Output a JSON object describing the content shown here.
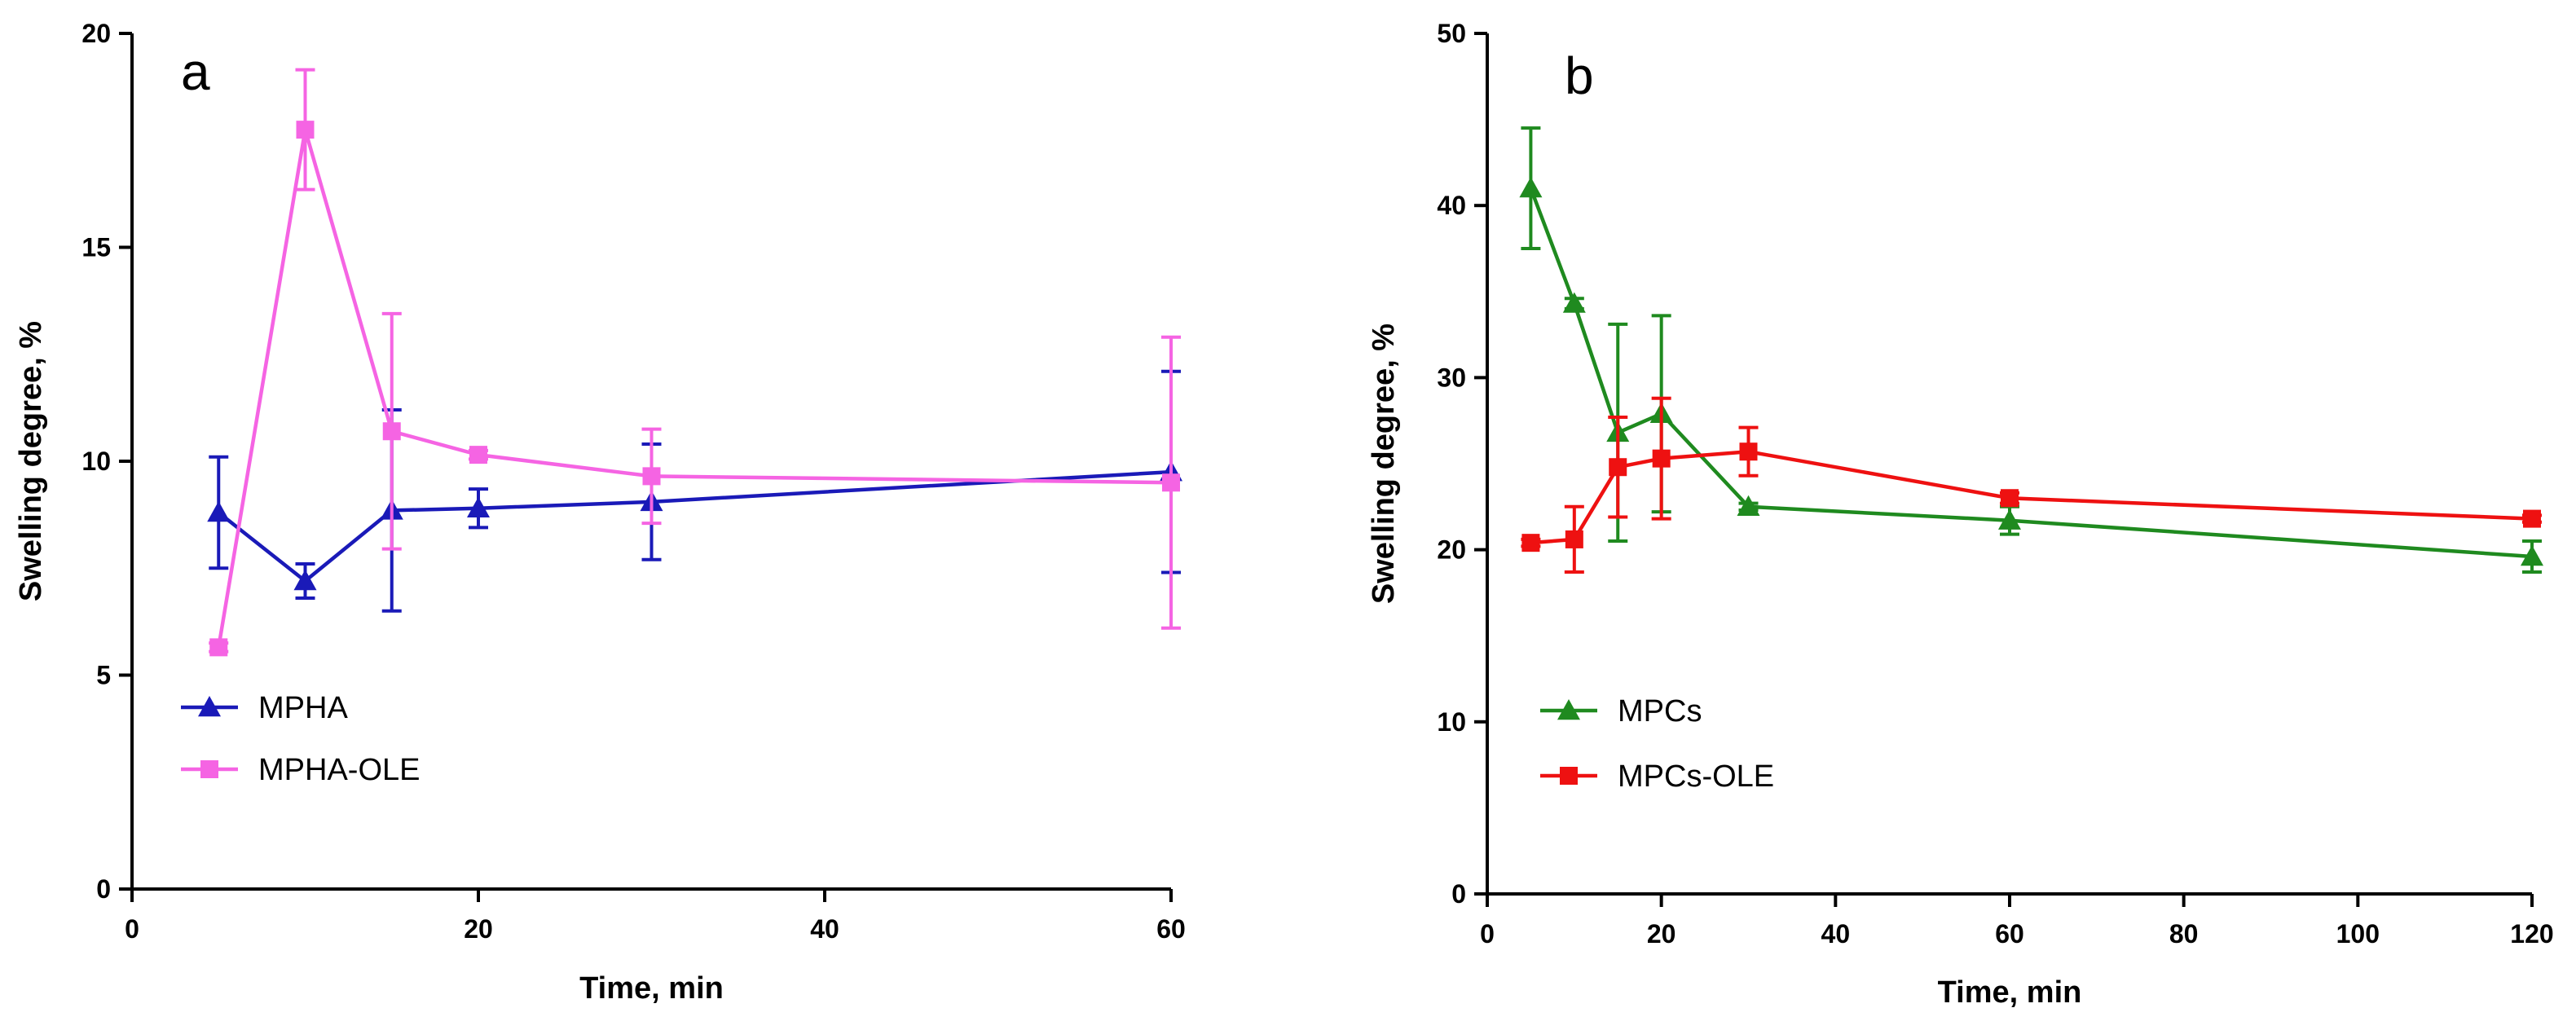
{
  "chart_data": [
    {
      "id": "a",
      "type": "line",
      "panel_label": "a",
      "xlabel": "Time, min",
      "ylabel": "Swelling degree, %",
      "xlim": [
        0,
        60
      ],
      "ylim": [
        0,
        20
      ],
      "xticks": [
        0,
        20,
        40,
        60
      ],
      "yticks": [
        0,
        5,
        10,
        15,
        20
      ],
      "legend_position": "lower-left",
      "series": [
        {
          "name": "MPHA",
          "color": "#1a1ab8",
          "marker": "triangle",
          "x": [
            5,
            10,
            15,
            20,
            30,
            60
          ],
          "y": [
            8.8,
            7.2,
            8.85,
            8.9,
            9.05,
            9.75
          ],
          "err": [
            1.3,
            0.4,
            2.35,
            0.45,
            1.35,
            2.35
          ]
        },
        {
          "name": "MPHA-OLE",
          "color": "#f564e3",
          "marker": "square",
          "x": [
            5,
            10,
            15,
            20,
            30,
            60
          ],
          "y": [
            5.65,
            17.75,
            10.7,
            10.15,
            9.65,
            9.5
          ],
          "err": [
            0.1,
            1.4,
            2.75,
            0.1,
            1.1,
            3.4
          ]
        }
      ]
    },
    {
      "id": "b",
      "type": "line",
      "panel_label": "b",
      "xlabel": "Time, min",
      "ylabel": "Swelling degree, %",
      "xlim": [
        0,
        120
      ],
      "ylim": [
        0,
        50
      ],
      "xticks": [
        0,
        20,
        40,
        60,
        80,
        100,
        120
      ],
      "yticks": [
        0,
        10,
        20,
        30,
        40,
        50
      ],
      "legend_position": "lower-left",
      "series": [
        {
          "name": "MPCs",
          "color": "#1f8a1f",
          "marker": "triangle",
          "x": [
            5,
            10,
            15,
            20,
            30,
            60,
            120
          ],
          "y": [
            41,
            34.3,
            26.8,
            27.9,
            22.5,
            21.7,
            19.6
          ],
          "err": [
            3.5,
            0.3,
            6.3,
            5.7,
            0.2,
            0.8,
            0.9
          ]
        },
        {
          "name": "MPCs-OLE",
          "color": "#ee1111",
          "marker": "square",
          "x": [
            5,
            10,
            15,
            20,
            30,
            60,
            120
          ],
          "y": [
            20.4,
            20.6,
            24.8,
            25.3,
            25.7,
            23,
            21.8
          ],
          "err": [
            0.2,
            1.9,
            2.9,
            3.5,
            1.4,
            0.3,
            0.2
          ]
        }
      ]
    }
  ]
}
